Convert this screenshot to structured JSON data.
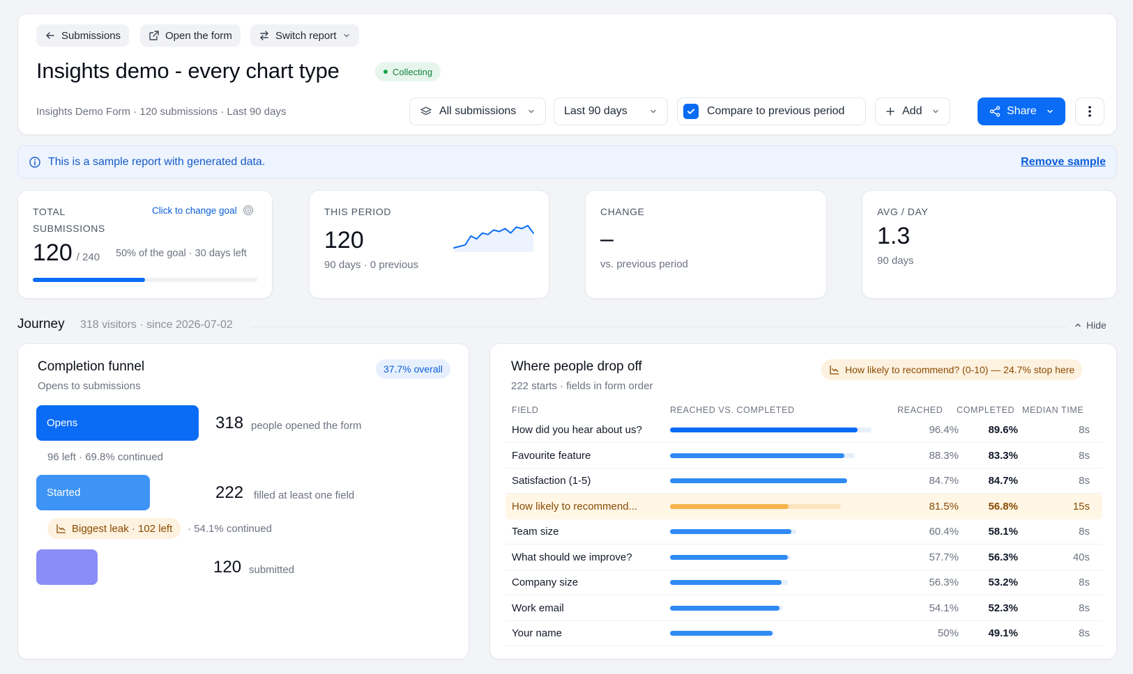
{
  "header": {
    "nav": {
      "back_label": "Submissions",
      "open_form_label": "Open the form",
      "switch_report_label": "Switch report"
    },
    "title": "Insights demo - every chart type",
    "status": "Collecting",
    "subtitle": "Insights Demo Form · 120 submissions · Last 90 days",
    "filters": {
      "submissions_filter": "All submissions",
      "date_range": "Last 90 days",
      "compare_label": "Compare to previous period",
      "compare_checked": true
    },
    "add_label": "Add",
    "share_label": "Share"
  },
  "banner": {
    "message": "This is a sample report with generated data.",
    "remove_label": "Remove sample"
  },
  "stats": {
    "total": {
      "label": "TOTAL SUBMISSIONS",
      "goal_link": "Click to change goal",
      "value": "120",
      "goal": "/ 240",
      "note": "50% of the goal · 30 days left",
      "progress_pct": 50
    },
    "this_period": {
      "label": "THIS PERIOD",
      "value": "120",
      "note": "90 days · 0 previous"
    },
    "change": {
      "label": "CHANGE",
      "value": "–",
      "note": "vs. previous period"
    },
    "avg_day": {
      "label": "AVG / DAY",
      "value": "1.3",
      "note": "90 days"
    }
  },
  "journey": {
    "title": "Journey",
    "subtitle": "318 visitors · since 2026-07-02",
    "hide_label": "Hide"
  },
  "funnel": {
    "title": "Completion funnel",
    "subtitle": "Opens to submissions",
    "overall": "37.7% overall",
    "steps": [
      {
        "label": "Opens",
        "value": "318",
        "desc": "people opened the form",
        "fraction": 1.0
      },
      {
        "label": "Started",
        "value": "222",
        "desc": "filled at least one field",
        "fraction": 0.698
      },
      {
        "label": "",
        "value": "120",
        "desc": "submitted",
        "fraction": 0.377
      }
    ],
    "gap1": "96 left  ·  69.8% continued",
    "leak_label": "Biggest leak · 102 left",
    "gap2": "· 54.1% continued",
    "colors": {
      "opens": "#0a6cf5",
      "started": "#3d94f6",
      "submitted": "#8a8df6"
    }
  },
  "dropoff": {
    "title": "Where people drop off",
    "subtitle": "222 starts · fields in form order",
    "badge": "How likely to recommend? (0-10) — 24.7% stop here",
    "columns": {
      "field": "FIELD",
      "bar": "REACHED VS. COMPLETED",
      "reached": "REACHED",
      "completed": "COMPLETED",
      "median": "MEDIAN TIME"
    },
    "rows": [
      {
        "field": "How did you hear about us?",
        "reached": "96.4%",
        "completed": "89.6%",
        "median": "8s",
        "reached_pct": 96.4,
        "completed_pct": 89.6,
        "highlight": false
      },
      {
        "field": "Favourite feature",
        "reached": "88.3%",
        "completed": "83.3%",
        "median": "8s",
        "reached_pct": 88.3,
        "completed_pct": 83.3,
        "highlight": false
      },
      {
        "field": "Satisfaction (1-5)",
        "reached": "84.7%",
        "completed": "84.7%",
        "median": "8s",
        "reached_pct": 84.7,
        "completed_pct": 84.7,
        "highlight": false
      },
      {
        "field": "How likely to recommend...",
        "reached": "81.5%",
        "completed": "56.8%",
        "median": "15s",
        "reached_pct": 81.5,
        "completed_pct": 56.8,
        "highlight": true
      },
      {
        "field": "Team size",
        "reached": "60.4%",
        "completed": "58.1%",
        "median": "8s",
        "reached_pct": 60.4,
        "completed_pct": 58.1,
        "highlight": false
      },
      {
        "field": "What should we improve?",
        "reached": "57.7%",
        "completed": "56.3%",
        "median": "40s",
        "reached_pct": 57.7,
        "completed_pct": 56.3,
        "highlight": false
      },
      {
        "field": "Company size",
        "reached": "56.3%",
        "completed": "53.2%",
        "median": "8s",
        "reached_pct": 56.3,
        "completed_pct": 53.2,
        "highlight": false
      },
      {
        "field": "Work email",
        "reached": "54.1%",
        "completed": "52.3%",
        "median": "8s",
        "reached_pct": 54.1,
        "completed_pct": 52.3,
        "highlight": false
      },
      {
        "field": "Your name",
        "reached": "50%",
        "completed": "49.1%",
        "median": "8s",
        "reached_pct": 50,
        "completed_pct": 49.1,
        "highlight": false
      }
    ]
  },
  "sparkline": {
    "values": [
      2,
      2.5,
      3,
      6,
      5,
      7,
      6.5,
      8,
      7.5,
      8.5,
      7,
      9,
      8.5,
      9.5,
      7
    ]
  }
}
